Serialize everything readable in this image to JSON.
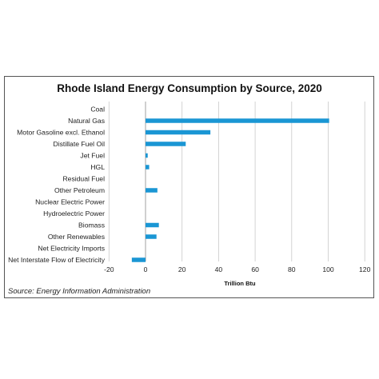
{
  "chart_data": {
    "type": "bar",
    "orientation": "horizontal",
    "title": "Rhode Island Energy Consumption by Source, 2020",
    "xlabel": "Trillion Btu",
    "ylabel": "",
    "source": "Source: Energy Information Administration",
    "categories": [
      "Coal",
      "Natural Gas",
      "Motor Gasoline excl. Ethanol",
      "Distillate Fuel Oil",
      "Jet Fuel",
      "HGL",
      "Residual Fuel",
      "Other Petroleum",
      "Nuclear Electric Power",
      "Hydroelectric Power",
      "Biomass",
      "Other Renewables",
      "Net Electricity Imports",
      "Net Interstate Flow of Electricity"
    ],
    "values": [
      0,
      100.5,
      35.5,
      22,
      1.2,
      2,
      0,
      6.5,
      0,
      0,
      7.3,
      6,
      0,
      -7.5
    ],
    "xlim": [
      -20,
      120
    ],
    "xticks": [
      -20,
      0,
      20,
      40,
      60,
      80,
      100,
      120
    ],
    "grid": true,
    "colors": {
      "bar": "#1a96d4",
      "grid": "#c9c9c9",
      "negative_tick": "#e0303a"
    }
  }
}
